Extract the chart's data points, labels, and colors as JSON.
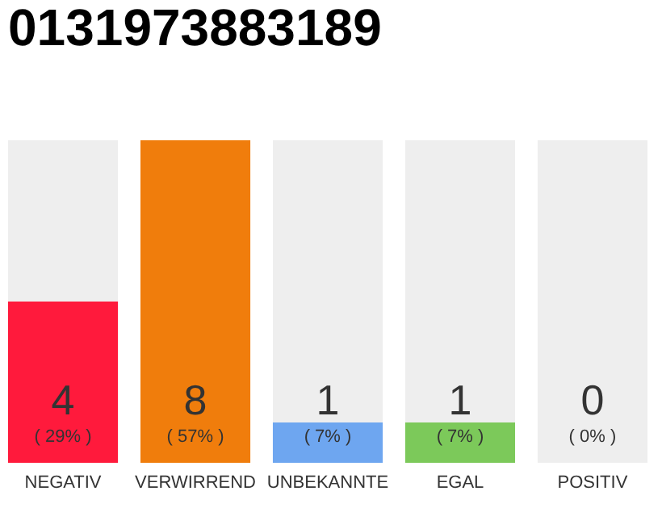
{
  "chart_data": {
    "type": "bar",
    "title": "0131973883189",
    "categories": [
      "NEGATIV",
      "VERWIRREND",
      "UNBEKANNTE",
      "EGAL",
      "POSITIV"
    ],
    "stacked": true,
    "series": [
      {
        "colors": [
          "#ff1a3c",
          "#f07d0c",
          "#6ea6f0",
          "#7cc95a",
          "#cccccc"
        ],
        "values": [
          4,
          8,
          1,
          1,
          0
        ],
        "value_labels": [
          "4",
          "8",
          "1",
          "1",
          null
        ]
      },
      {
        "color": "#eeeeee",
        "values": [
          4,
          0,
          7,
          7,
          8
        ]
      }
    ],
    "annotations": [
      "( 29% )",
      "( 57% )",
      "( 7% )",
      "( 7% )",
      "( 0% )",
      "0"
    ],
    "ylim": [
      0,
      8
    ]
  }
}
